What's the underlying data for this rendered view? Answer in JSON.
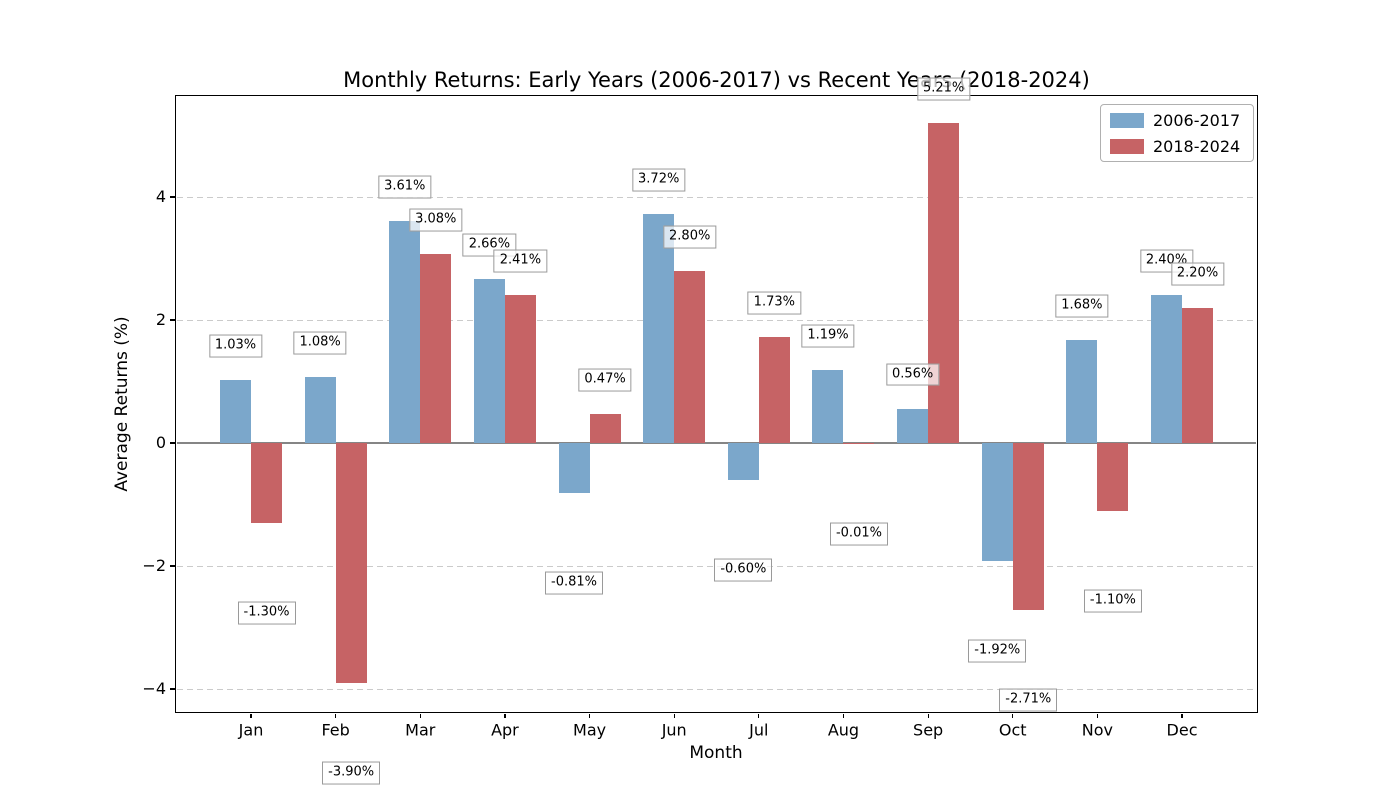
{
  "chart_data": {
    "type": "bar",
    "title": "Monthly Returns: Early Years (2006-2017) vs Recent Years (2018-2024)",
    "xlabel": "Month",
    "ylabel": "Average Returns (%)",
    "categories": [
      "Jan",
      "Feb",
      "Mar",
      "Apr",
      "May",
      "Jun",
      "Jul",
      "Aug",
      "Sep",
      "Oct",
      "Nov",
      "Dec"
    ],
    "series": [
      {
        "name": "2006-2017",
        "color": "#7BA7CB",
        "values": [
          1.03,
          1.08,
          3.61,
          2.66,
          -0.81,
          3.72,
          -0.6,
          1.19,
          0.56,
          -1.92,
          1.68,
          2.4
        ],
        "labels": [
          "1.03%",
          "1.08%",
          "3.61%",
          "2.66%",
          "-0.81%",
          "3.72%",
          "-0.60%",
          "1.19%",
          "0.56%",
          "-1.92%",
          "1.68%",
          "2.40%"
        ]
      },
      {
        "name": "2018-2024",
        "color": "#C66365",
        "values": [
          -1.3,
          -3.9,
          3.08,
          2.41,
          0.47,
          2.8,
          1.73,
          -0.01,
          5.21,
          -2.71,
          -1.1,
          2.2
        ],
        "labels": [
          "-1.30%",
          "-3.90%",
          "3.08%",
          "2.41%",
          "0.47%",
          "2.80%",
          "1.73%",
          "-0.01%",
          "5.21%",
          "-2.71%",
          "-1.10%",
          "2.20%"
        ]
      }
    ],
    "yticks": [
      4,
      2,
      0,
      -2,
      -4
    ],
    "ytick_labels": [
      "4",
      "2",
      "0",
      "−2",
      "−4"
    ],
    "ylim": [
      -4.4,
      5.66
    ],
    "grid": "horizontal-dashed",
    "zero_line": true,
    "bar_value_labels": true,
    "legend_position": "upper-right"
  },
  "legend": {
    "entries": [
      "2006-2017",
      "2018-2024"
    ]
  },
  "colors": {
    "bar_early": "#7BA7CB",
    "bar_recent": "#C66365",
    "gridline": "#cbcbcb",
    "zero_line": "#858585",
    "annotation_border": "#9a9a9a",
    "spine": "#000000"
  }
}
